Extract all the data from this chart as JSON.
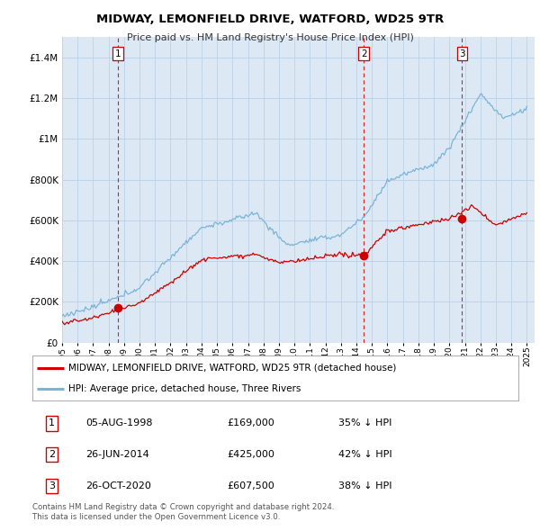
{
  "title": "MIDWAY, LEMONFIELD DRIVE, WATFORD, WD25 9TR",
  "subtitle": "Price paid vs. HM Land Registry's House Price Index (HPI)",
  "ylim": [
    0,
    1500000
  ],
  "yticks": [
    0,
    200000,
    400000,
    600000,
    800000,
    1000000,
    1200000,
    1400000
  ],
  "ytick_labels": [
    "£0",
    "£200K",
    "£400K",
    "£600K",
    "£800K",
    "£1M",
    "£1.2M",
    "£1.4M"
  ],
  "xlim_start": 1995,
  "xlim_end": 2025.5,
  "background_color": "#ffffff",
  "plot_bg_color": "#dce9f5",
  "grid_color": "#b8cfe8",
  "sale_color": "#cc0000",
  "hpi_color": "#7ab4d8",
  "dashed_line_color": "#cc0000",
  "transactions": [
    {
      "label": "1",
      "date": "05-AUG-1998",
      "price": 169000,
      "pct": "35%",
      "x": 1998.6
    },
    {
      "label": "2",
      "date": "26-JUN-2014",
      "price": 425000,
      "pct": "42%",
      "x": 2014.48
    },
    {
      "label": "3",
      "date": "26-OCT-2020",
      "price": 607500,
      "pct": "38%",
      "x": 2020.82
    }
  ],
  "legend_entries": [
    {
      "label": "MIDWAY, LEMONFIELD DRIVE, WATFORD, WD25 9TR (detached house)",
      "color": "#cc0000"
    },
    {
      "label": "HPI: Average price, detached house, Three Rivers",
      "color": "#7ab4d8"
    }
  ],
  "footer_lines": [
    "Contains HM Land Registry data © Crown copyright and database right 2024.",
    "This data is licensed under the Open Government Licence v3.0."
  ],
  "table_rows": [
    [
      "1",
      "05-AUG-1998",
      "£169,000",
      "35% ↓ HPI"
    ],
    [
      "2",
      "26-JUN-2014",
      "£425,000",
      "42% ↓ HPI"
    ],
    [
      "3",
      "26-OCT-2020",
      "£607,500",
      "38% ↓ HPI"
    ]
  ],
  "hpi_data_x": [
    1995.0,
    1995.083,
    1995.167,
    1995.25,
    1995.333,
    1995.417,
    1995.5,
    1995.583,
    1995.667,
    1995.75,
    1995.833,
    1995.917,
    1996.0,
    1996.083,
    1996.167,
    1996.25,
    1996.333,
    1996.417,
    1996.5,
    1996.583,
    1996.667,
    1996.75,
    1996.833,
    1996.917,
    1997.0,
    1997.083,
    1997.167,
    1997.25,
    1997.333,
    1997.417,
    1997.5,
    1997.583,
    1997.667,
    1997.75,
    1997.833,
    1997.917,
    1998.0,
    1998.083,
    1998.167,
    1998.25,
    1998.333,
    1998.417,
    1998.5,
    1998.583,
    1998.667,
    1998.75,
    1998.833,
    1998.917,
    1999.0,
    1999.083,
    1999.167,
    1999.25,
    1999.333,
    1999.417,
    1999.5,
    1999.583,
    1999.667,
    1999.75,
    1999.833,
    1999.917,
    2000.0,
    2000.083,
    2000.167,
    2000.25,
    2000.333,
    2000.417,
    2000.5,
    2000.583,
    2000.667,
    2000.75,
    2000.833,
    2000.917,
    2001.0,
    2001.083,
    2001.167,
    2001.25,
    2001.333,
    2001.417,
    2001.5,
    2001.583,
    2001.667,
    2001.75,
    2001.833,
    2001.917,
    2002.0,
    2002.083,
    2002.167,
    2002.25,
    2002.333,
    2002.417,
    2002.5,
    2002.583,
    2002.667,
    2002.75,
    2002.833,
    2002.917,
    2003.0,
    2003.083,
    2003.167,
    2003.25,
    2003.333,
    2003.417,
    2003.5,
    2003.583,
    2003.667,
    2003.75,
    2003.833,
    2003.917,
    2004.0,
    2004.083,
    2004.167,
    2004.25,
    2004.333,
    2004.417,
    2004.5,
    2004.583,
    2004.667,
    2004.75,
    2004.833,
    2004.917,
    2005.0,
    2005.083,
    2005.167,
    2005.25,
    2005.333,
    2005.417,
    2005.5,
    2005.583,
    2005.667,
    2005.75,
    2005.833,
    2005.917,
    2006.0,
    2006.083,
    2006.167,
    2006.25,
    2006.333,
    2006.417,
    2006.5,
    2006.583,
    2006.667,
    2006.75,
    2006.833,
    2006.917,
    2007.0,
    2007.083,
    2007.167,
    2007.25,
    2007.333,
    2007.417,
    2007.5,
    2007.583,
    2007.667,
    2007.75,
    2007.833,
    2007.917,
    2008.0,
    2008.083,
    2008.167,
    2008.25,
    2008.333,
    2008.417,
    2008.5,
    2008.583,
    2008.667,
    2008.75,
    2008.833,
    2008.917,
    2009.0,
    2009.083,
    2009.167,
    2009.25,
    2009.333,
    2009.417,
    2009.5,
    2009.583,
    2009.667,
    2009.75,
    2009.833,
    2009.917,
    2010.0,
    2010.083,
    2010.167,
    2010.25,
    2010.333,
    2010.417,
    2010.5,
    2010.583,
    2010.667,
    2010.75,
    2010.833,
    2010.917,
    2011.0,
    2011.083,
    2011.167,
    2011.25,
    2011.333,
    2011.417,
    2011.5,
    2011.583,
    2011.667,
    2011.75,
    2011.833,
    2011.917,
    2012.0,
    2012.083,
    2012.167,
    2012.25,
    2012.333,
    2012.417,
    2012.5,
    2012.583,
    2012.667,
    2012.75,
    2012.833,
    2012.917,
    2013.0,
    2013.083,
    2013.167,
    2013.25,
    2013.333,
    2013.417,
    2013.5,
    2013.583,
    2013.667,
    2013.75,
    2013.833,
    2013.917,
    2014.0,
    2014.083,
    2014.167,
    2014.25,
    2014.333,
    2014.417,
    2014.5,
    2014.583,
    2014.667,
    2014.75,
    2014.833,
    2014.917,
    2015.0,
    2015.083,
    2015.167,
    2015.25,
    2015.333,
    2015.417,
    2015.5,
    2015.583,
    2015.667,
    2015.75,
    2015.833,
    2015.917,
    2016.0,
    2016.083,
    2016.167,
    2016.25,
    2016.333,
    2016.417,
    2016.5,
    2016.583,
    2016.667,
    2016.75,
    2016.833,
    2016.917,
    2017.0,
    2017.083,
    2017.167,
    2017.25,
    2017.333,
    2017.417,
    2017.5,
    2017.583,
    2017.667,
    2017.75,
    2017.833,
    2017.917,
    2018.0,
    2018.083,
    2018.167,
    2018.25,
    2018.333,
    2018.417,
    2018.5,
    2018.583,
    2018.667,
    2018.75,
    2018.833,
    2018.917,
    2019.0,
    2019.083,
    2019.167,
    2019.25,
    2019.333,
    2019.417,
    2019.5,
    2019.583,
    2019.667,
    2019.75,
    2019.833,
    2019.917,
    2020.0,
    2020.083,
    2020.167,
    2020.25,
    2020.333,
    2020.417,
    2020.5,
    2020.583,
    2020.667,
    2020.75,
    2020.833,
    2020.917,
    2021.0,
    2021.083,
    2021.167,
    2021.25,
    2021.333,
    2021.417,
    2021.5,
    2021.583,
    2021.667,
    2021.75,
    2021.833,
    2021.917,
    2022.0,
    2022.083,
    2022.167,
    2022.25,
    2022.333,
    2022.417,
    2022.5,
    2022.583,
    2022.667,
    2022.75,
    2022.833,
    2022.917,
    2023.0,
    2023.083,
    2023.167,
    2023.25,
    2023.333,
    2023.417,
    2023.5,
    2023.583,
    2023.667,
    2023.75,
    2023.833,
    2023.917,
    2024.0,
    2024.083,
    2024.167,
    2024.25,
    2024.333,
    2024.417,
    2024.5,
    2024.583,
    2024.667,
    2024.75,
    2024.833,
    2024.917,
    2025.0
  ]
}
